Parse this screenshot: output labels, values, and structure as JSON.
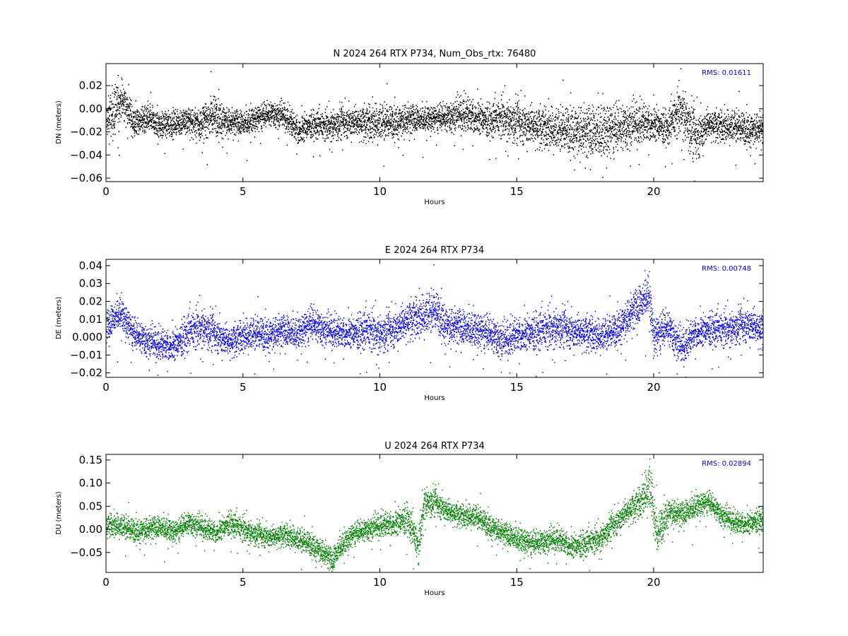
{
  "chart_data": [
    {
      "type": "scatter",
      "title": "N 2024 264 RTX  P734, Num_Obs_rtx: 76480",
      "xlabel": "Hours",
      "ylabel": "DN (meters)",
      "xlim": [
        0,
        24
      ],
      "ylim": [
        -0.063,
        0.039
      ],
      "xticks": [
        0,
        5,
        10,
        15,
        20
      ],
      "yticks": [
        -0.06,
        -0.04,
        -0.02,
        0.0,
        0.02
      ],
      "ytick_labels": [
        "−0.06",
        "−0.04",
        "−0.02",
        "0.00",
        "0.02"
      ],
      "annotation": "RMS:  0.01611",
      "annotation_color": "#0000ff",
      "marker_color": "#000000",
      "grid": false,
      "series": [
        {
          "values": {
            "x": [
              0,
              0.25,
              0.5,
              0.75,
              1,
              1.5,
              2,
              2.5,
              3,
              3.5,
              3.9,
              4.5,
              5,
              5.5,
              6,
              6.5,
              7,
              7.5,
              8,
              8.5,
              9,
              9.5,
              10,
              10.5,
              11,
              11.5,
              12,
              12.5,
              13,
              13.5,
              14,
              14.5,
              15,
              15.5,
              16,
              16.5,
              17,
              17.5,
              18,
              18.5,
              19,
              19.5,
              20,
              20.5,
              21,
              21.5,
              22,
              22.5,
              23,
              23.5,
              24
            ],
            "y": [
              -0.008,
              -0.002,
              0.008,
              0.003,
              -0.012,
              -0.008,
              -0.015,
              -0.012,
              -0.01,
              -0.012,
              -0.004,
              -0.012,
              -0.013,
              -0.008,
              -0.004,
              -0.006,
              -0.018,
              -0.013,
              -0.015,
              -0.012,
              -0.01,
              -0.012,
              -0.011,
              -0.01,
              -0.01,
              -0.009,
              -0.008,
              -0.007,
              -0.004,
              -0.006,
              -0.01,
              -0.008,
              -0.011,
              -0.013,
              -0.016,
              -0.017,
              -0.016,
              -0.022,
              -0.02,
              -0.018,
              -0.015,
              -0.012,
              -0.012,
              -0.016,
              0.0,
              -0.024,
              -0.012,
              -0.015,
              -0.014,
              -0.017,
              -0.018
            ],
            "spread": [
              0.012,
              0.02,
              0.018,
              0.015,
              0.01,
              0.01,
              0.01,
              0.01,
              0.01,
              0.012,
              0.016,
              0.01,
              0.01,
              0.01,
              0.01,
              0.01,
              0.012,
              0.01,
              0.01,
              0.012,
              0.012,
              0.014,
              0.014,
              0.012,
              0.012,
              0.01,
              0.01,
              0.012,
              0.014,
              0.014,
              0.012,
              0.014,
              0.016,
              0.016,
              0.016,
              0.016,
              0.018,
              0.02,
              0.022,
              0.02,
              0.018,
              0.016,
              0.014,
              0.012,
              0.018,
              0.02,
              0.012,
              0.012,
              0.012,
              0.012,
              0.012
            ]
          }
        }
      ]
    },
    {
      "type": "scatter",
      "title": "E 2024 264 RTX  P734",
      "xlabel": "Hours",
      "ylabel": "DE (meters)",
      "xlim": [
        0,
        24
      ],
      "ylim": [
        -0.0225,
        0.0435
      ],
      "xticks": [
        0,
        5,
        10,
        15,
        20
      ],
      "yticks": [
        -0.02,
        -0.01,
        0.0,
        0.01,
        0.02,
        0.03,
        0.04
      ],
      "ytick_labels": [
        "−0.02",
        "−0.01",
        "0.000",
        "0.01",
        "0.02",
        "0.03",
        "0.04"
      ],
      "annotation": "RMS:  0.00748",
      "annotation_color": "#0000ff",
      "marker_color": "#0000ff",
      "grid": false,
      "series": [
        {
          "values": {
            "x": [
              0,
              0.25,
              0.5,
              0.75,
              1,
              1.5,
              2,
              2.5,
              3,
              3.5,
              4,
              4.5,
              5,
              5.5,
              6,
              6.5,
              7,
              7.5,
              8,
              8.5,
              9,
              9.5,
              10,
              10.5,
              11,
              11.5,
              12,
              12.5,
              13,
              13.5,
              14,
              14.5,
              15,
              15.5,
              16,
              16.5,
              17,
              17.5,
              18,
              18.5,
              19,
              19.5,
              19.8,
              20,
              20.5,
              21,
              21.5,
              22,
              22.5,
              23,
              23.5,
              24
            ],
            "y": [
              0.005,
              0.01,
              0.014,
              0.008,
              0.002,
              -0.002,
              -0.004,
              -0.004,
              0.003,
              0.006,
              0.002,
              -0.002,
              0.001,
              0.003,
              0.002,
              0.003,
              0.002,
              0.008,
              0.004,
              0.003,
              0.003,
              0.004,
              0.002,
              0.005,
              0.01,
              0.012,
              0.016,
              0.006,
              0.005,
              0.004,
              0.002,
              -0.002,
              0.002,
              0.003,
              0.004,
              0.006,
              0.004,
              0.003,
              0.001,
              0.004,
              0.01,
              0.018,
              0.025,
              0.0,
              0.006,
              -0.006,
              0.003,
              0.005,
              0.004,
              0.006,
              0.008,
              0.004
            ],
            "spread": [
              0.008,
              0.008,
              0.008,
              0.008,
              0.008,
              0.008,
              0.008,
              0.008,
              0.009,
              0.009,
              0.009,
              0.008,
              0.008,
              0.008,
              0.008,
              0.008,
              0.008,
              0.009,
              0.008,
              0.008,
              0.008,
              0.009,
              0.009,
              0.009,
              0.01,
              0.01,
              0.01,
              0.009,
              0.009,
              0.009,
              0.009,
              0.009,
              0.009,
              0.009,
              0.009,
              0.009,
              0.009,
              0.009,
              0.008,
              0.008,
              0.009,
              0.01,
              0.01,
              0.01,
              0.009,
              0.009,
              0.008,
              0.008,
              0.008,
              0.008,
              0.009,
              0.009
            ]
          }
        }
      ]
    },
    {
      "type": "scatter",
      "title": "U 2024 264 RTX  P734",
      "xlabel": "Hours",
      "ylabel": "DU (meters)",
      "xlim": [
        0,
        24
      ],
      "ylim": [
        -0.093,
        0.162
      ],
      "xticks": [
        0,
        5,
        10,
        15,
        20
      ],
      "yticks": [
        -0.05,
        0.0,
        0.05,
        0.1,
        0.15
      ],
      "ytick_labels": [
        "−0.05",
        "0.00",
        "0.05",
        "0.10",
        "0.15"
      ],
      "annotation": "RMS:  0.02894",
      "annotation_color": "#0000ff",
      "marker_color": "#008000",
      "grid": false,
      "series": [
        {
          "values": {
            "x": [
              0,
              0.5,
              1,
              1.5,
              2,
              2.5,
              3,
              3.5,
              4,
              4.5,
              5,
              5.5,
              6,
              6.5,
              7,
              7.5,
              8,
              8.25,
              8.5,
              9,
              9.5,
              10,
              10.5,
              11,
              11.4,
              11.6,
              12,
              12.5,
              13,
              13.5,
              14,
              14.5,
              15,
              15.5,
              16,
              16.5,
              17,
              17.5,
              18,
              18.5,
              19,
              19.5,
              19.85,
              20.1,
              20.5,
              21,
              21.5,
              22,
              22.5,
              23,
              23.5,
              24
            ],
            "y": [
              0.01,
              0.01,
              0.0,
              0.0,
              0.005,
              -0.005,
              0.015,
              0.005,
              -0.005,
              0.015,
              0.0,
              -0.01,
              -0.015,
              -0.01,
              -0.02,
              -0.03,
              -0.055,
              -0.07,
              -0.04,
              -0.01,
              0.0,
              0.01,
              0.015,
              0.025,
              -0.04,
              0.06,
              0.06,
              0.04,
              0.03,
              0.03,
              0.01,
              -0.01,
              -0.02,
              -0.03,
              -0.025,
              -0.02,
              -0.035,
              -0.03,
              -0.02,
              0.01,
              0.04,
              0.06,
              0.1,
              -0.01,
              0.04,
              0.03,
              0.05,
              0.06,
              0.03,
              0.015,
              0.015,
              0.025
            ],
            "spread": [
              0.022,
              0.022,
              0.022,
              0.022,
              0.022,
              0.022,
              0.022,
              0.022,
              0.022,
              0.022,
              0.022,
              0.022,
              0.022,
              0.022,
              0.022,
              0.022,
              0.024,
              0.024,
              0.024,
              0.022,
              0.022,
              0.024,
              0.026,
              0.028,
              0.03,
              0.028,
              0.026,
              0.024,
              0.022,
              0.022,
              0.022,
              0.022,
              0.024,
              0.024,
              0.024,
              0.024,
              0.024,
              0.024,
              0.022,
              0.024,
              0.026,
              0.03,
              0.05,
              0.04,
              0.026,
              0.024,
              0.024,
              0.022,
              0.022,
              0.022,
              0.022,
              0.022
            ]
          }
        }
      ]
    }
  ]
}
